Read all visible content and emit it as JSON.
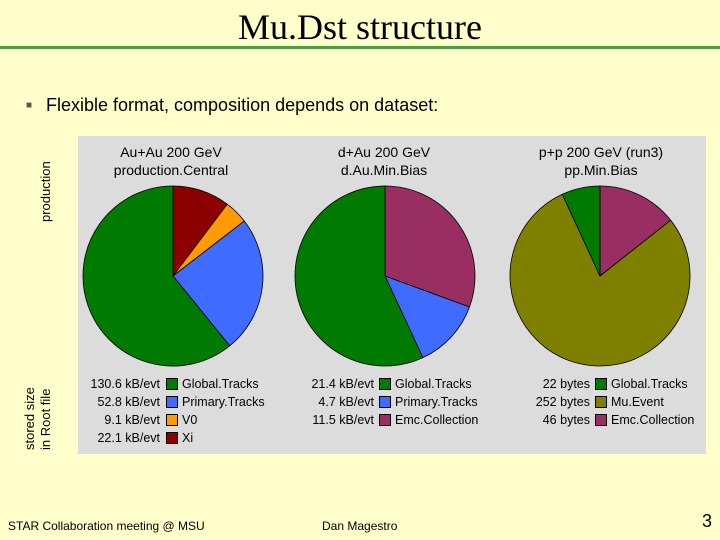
{
  "slide": {
    "title": "Mu.Dst structure",
    "bullet": "Flexible format, composition depends on dataset:",
    "axis_label_top": "production",
    "axis_label_bottom_1": "stored size",
    "axis_label_bottom_2": "in Root file",
    "footer_left": "STAR Collaboration meeting @ MSU",
    "footer_center": "Dan Magestro",
    "page_number": "3"
  },
  "chart_data": [
    {
      "type": "pie",
      "title_lines": [
        "Au+Au 200 GeV",
        "production.Central"
      ],
      "labels": [
        "Global.Tracks",
        "Primary.Tracks",
        "V0",
        "Xi"
      ],
      "sizes": [
        "130.6 kB/evt",
        "52.8 kB/evt",
        "9.1 kB/evt",
        "22.1 kB/evt"
      ],
      "values": [
        130.6,
        52.8,
        9.1,
        22.1
      ],
      "colors": [
        "#007a00",
        "#3f6bff",
        "#ff9a00",
        "#8c0000"
      ]
    },
    {
      "type": "pie",
      "title_lines": [
        "d+Au 200 GeV",
        "d.Au.Min.Bias"
      ],
      "labels": [
        "Global.Tracks",
        "Primary.Tracks",
        "Emc.Collection"
      ],
      "sizes": [
        "21.4 kB/evt",
        "4.7 kB/evt",
        "11.5 kB/evt"
      ],
      "values": [
        21.4,
        4.7,
        11.5
      ],
      "colors": [
        "#007a00",
        "#3f6bff",
        "#992e63"
      ]
    },
    {
      "type": "pie",
      "title_lines": [
        "p+p 200 GeV (run3)",
        "pp.Min.Bias"
      ],
      "labels": [
        "Global.Tracks",
        "Mu.Event",
        "Emc.Collection"
      ],
      "sizes": [
        "22 bytes",
        "252 bytes",
        "46 bytes"
      ],
      "values": [
        22,
        252,
        46
      ],
      "colors": [
        "#007a00",
        "#808000",
        "#992e63"
      ]
    }
  ]
}
